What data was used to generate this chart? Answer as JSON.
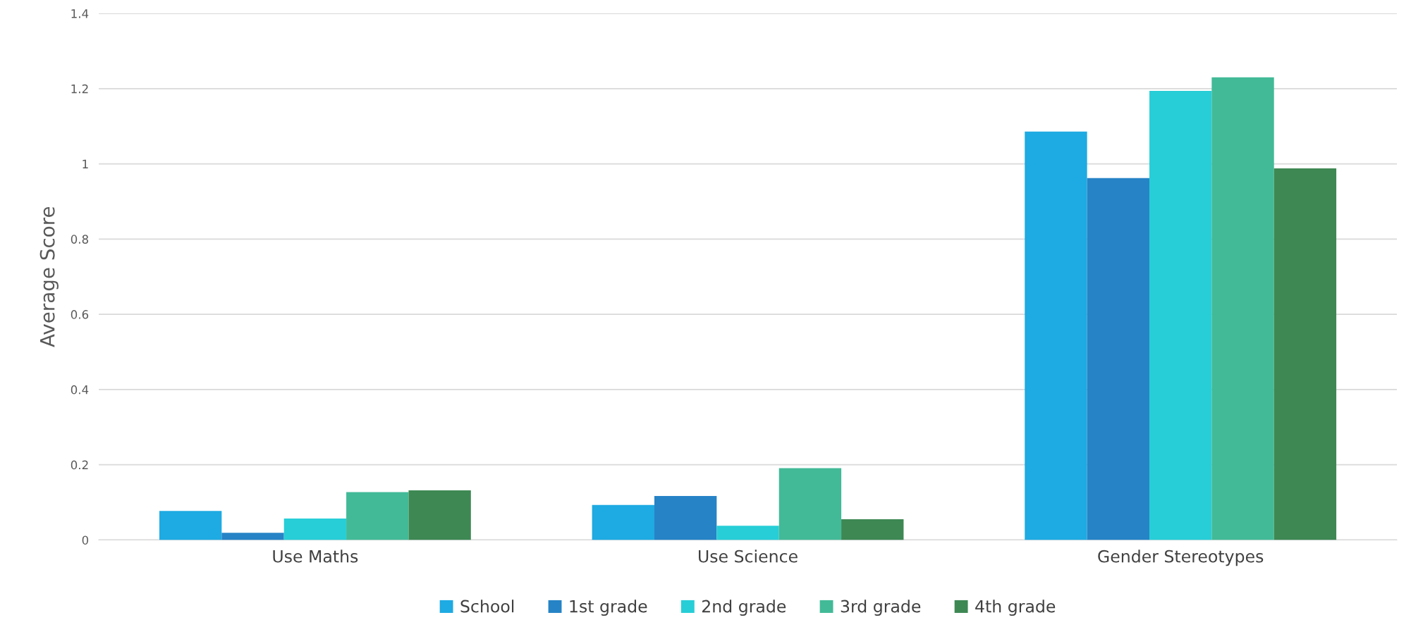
{
  "chart_data": {
    "type": "bar",
    "ylabel": "Average Score",
    "categories": [
      "Use Maths",
      "Use Science",
      "Gender Stereotypes"
    ],
    "series": [
      {
        "name": "School",
        "color": "#1eaae2",
        "values": [
          0.077,
          0.093,
          1.086
        ]
      },
      {
        "name": "1st grade",
        "color": "#2683c6",
        "values": [
          0.019,
          0.117,
          0.962
        ]
      },
      {
        "name": "2nd grade",
        "color": "#27ced7",
        "values": [
          0.057,
          0.038,
          1.194
        ]
      },
      {
        "name": "3rd grade",
        "color": "#42ba97",
        "values": [
          0.127,
          0.191,
          1.23
        ]
      },
      {
        "name": "4th grade",
        "color": "#3e8853",
        "values": [
          0.132,
          0.055,
          0.988
        ]
      }
    ],
    "ylim": [
      0,
      1.4
    ],
    "yticks": [
      0,
      0.2,
      0.4,
      0.6,
      0.8,
      1,
      1.2,
      1.4
    ],
    "grid": "y",
    "legend": "bottom"
  }
}
